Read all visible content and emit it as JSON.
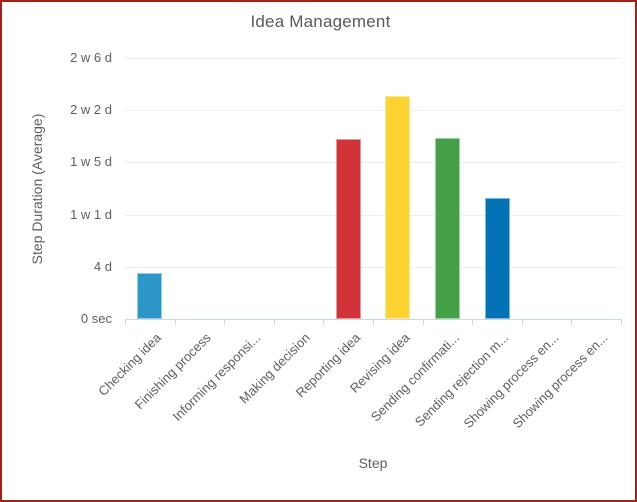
{
  "chart_data": {
    "type": "bar",
    "title": "Idea Management",
    "xlabel": "Step",
    "ylabel": "Step Duration (Average)",
    "categories": [
      "Checking idea",
      "Finishing process",
      "Informing responsi...",
      "Making decision",
      "Reporting idea",
      "Revising idea",
      "Sending confirmati...",
      "Sending rejection m...",
      "Showing process en...",
      "Showing process en..."
    ],
    "values_days": [
      3.5,
      0,
      0,
      0,
      13.8,
      17.1,
      13.9,
      9.3,
      0,
      0
    ],
    "bar_colors": [
      "#2d96c8",
      null,
      null,
      null,
      "#d23338",
      "#fdd332",
      "#43a047",
      "#0072b5",
      null,
      null
    ],
    "y_ticks": [
      {
        "label": "0 sec",
        "days": 0
      },
      {
        "label": "4 d",
        "days": 4
      },
      {
        "label": "1 w 1 d",
        "days": 8
      },
      {
        "label": "1 w 5 d",
        "days": 12
      },
      {
        "label": "2 w 2 d",
        "days": 16
      },
      {
        "label": "2 w 6 d",
        "days": 20
      }
    ],
    "ylim": [
      0,
      20
    ],
    "grid": "horizontal-only",
    "legend": "none"
  },
  "styles": {
    "frame_border_color": "#a32319",
    "background_color": "#ffffff",
    "grid_color": "#ededed",
    "axis_color": "#ccd6e6",
    "title_color": "#555b61",
    "label_color": "#5e5e5e"
  }
}
